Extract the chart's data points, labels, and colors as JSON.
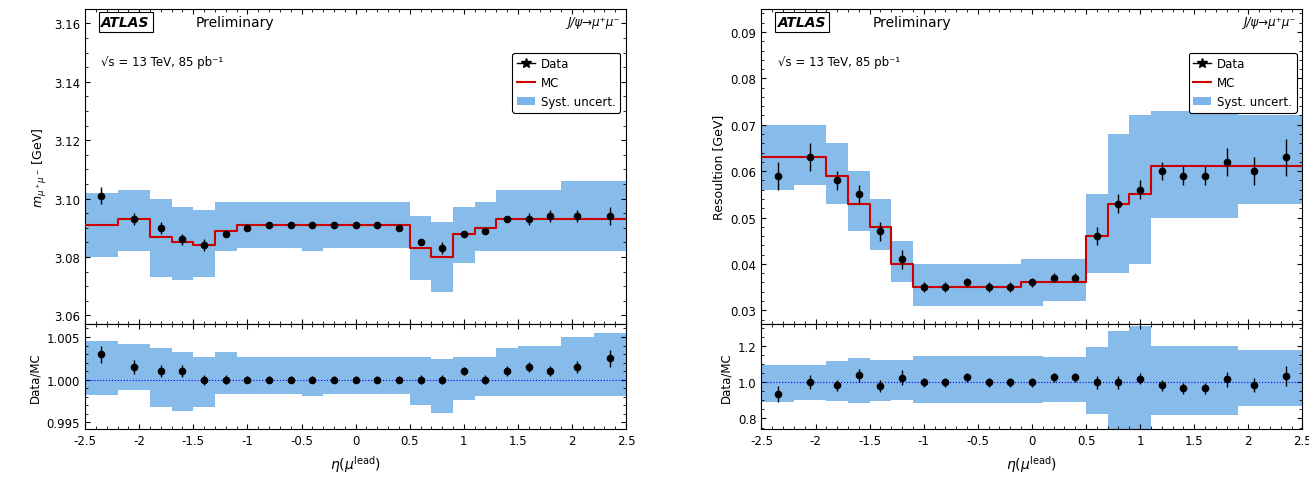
{
  "left": {
    "subtitle": "√s = 13 TeV, 85 pb⁻¹",
    "decay": "J/ψ→μ⁺μ⁻",
    "ylabel_main": "$m_{\\mu^+\\mu^-}$ [GeV]",
    "ylabel_ratio": "Data/MC",
    "xlabel": "$\\eta(\\mu^\\mathrm{lead})$",
    "ylim_main": [
      3.057,
      3.165
    ],
    "ylim_ratio": [
      0.9942,
      1.0065
    ],
    "yticks_main": [
      3.06,
      3.08,
      3.1,
      3.12,
      3.14,
      3.16
    ],
    "yticks_ratio": [
      0.995,
      1.0,
      1.005
    ],
    "eta_edges": [
      -2.5,
      -2.2,
      -1.9,
      -1.7,
      -1.5,
      -1.3,
      -1.1,
      -0.9,
      -0.7,
      -0.5,
      -0.3,
      -0.1,
      0.1,
      0.3,
      0.5,
      0.7,
      0.9,
      1.1,
      1.3,
      1.5,
      1.7,
      1.9,
      2.2,
      2.5
    ],
    "data_x": [
      -2.35,
      -2.05,
      -1.8,
      -1.6,
      -1.4,
      -1.2,
      -1.0,
      -0.8,
      -0.6,
      -0.4,
      -0.2,
      0.0,
      0.2,
      0.4,
      0.6,
      0.8,
      1.0,
      1.2,
      1.4,
      1.6,
      1.8,
      2.05,
      2.35
    ],
    "data_y": [
      3.101,
      3.093,
      3.09,
      3.086,
      3.084,
      3.088,
      3.09,
      3.091,
      3.091,
      3.091,
      3.091,
      3.091,
      3.091,
      3.09,
      3.085,
      3.083,
      3.088,
      3.089,
      3.093,
      3.093,
      3.094,
      3.094,
      3.094
    ],
    "data_yerr": [
      0.003,
      0.002,
      0.002,
      0.002,
      0.002,
      0.001,
      0.001,
      0.001,
      0.001,
      0.001,
      0.001,
      0.001,
      0.001,
      0.001,
      0.001,
      0.002,
      0.001,
      0.001,
      0.001,
      0.002,
      0.002,
      0.002,
      0.003
    ],
    "mc_y": [
      3.091,
      3.093,
      3.087,
      3.085,
      3.084,
      3.089,
      3.091,
      3.091,
      3.091,
      3.091,
      3.091,
      3.091,
      3.091,
      3.091,
      3.083,
      3.08,
      3.088,
      3.09,
      3.093,
      3.093,
      3.093,
      3.093,
      3.093
    ],
    "syst_lo": [
      3.08,
      3.082,
      3.073,
      3.072,
      3.073,
      3.082,
      3.083,
      3.083,
      3.083,
      3.082,
      3.083,
      3.083,
      3.083,
      3.083,
      3.072,
      3.068,
      3.078,
      3.082,
      3.082,
      3.082,
      3.082,
      3.082,
      3.082
    ],
    "syst_hi": [
      3.102,
      3.103,
      3.1,
      3.097,
      3.096,
      3.099,
      3.099,
      3.099,
      3.099,
      3.099,
      3.099,
      3.099,
      3.099,
      3.099,
      3.094,
      3.092,
      3.097,
      3.099,
      3.103,
      3.103,
      3.103,
      3.106,
      3.106
    ],
    "ratio_y": [
      1.003,
      1.0015,
      1.001,
      1.001,
      1.0,
      1.0,
      1.0,
      1.0,
      1.0,
      1.0,
      1.0,
      1.0,
      1.0,
      1.0,
      1.0,
      1.0,
      1.001,
      1.0,
      1.001,
      1.0015,
      1.001,
      1.0015,
      1.0025
    ],
    "ratio_yerr": [
      0.001,
      0.0008,
      0.0007,
      0.0007,
      0.0006,
      0.0005,
      0.0004,
      0.0004,
      0.0004,
      0.0004,
      0.0004,
      0.0004,
      0.0004,
      0.0004,
      0.0005,
      0.0005,
      0.0005,
      0.0005,
      0.0006,
      0.0006,
      0.0006,
      0.0007,
      0.001
    ],
    "ratio_syst_lo": [
      0.9982,
      0.9988,
      0.9968,
      0.9963,
      0.9968,
      0.9983,
      0.9983,
      0.9983,
      0.9983,
      0.9981,
      0.9983,
      0.9983,
      0.9983,
      0.9983,
      0.997,
      0.9961,
      0.9976,
      0.9981,
      0.9981,
      0.9981,
      0.9981,
      0.9981,
      0.9981
    ],
    "ratio_syst_hi": [
      1.0045,
      1.0042,
      1.0037,
      1.0032,
      1.0027,
      1.0032,
      1.0027,
      1.0027,
      1.0027,
      1.0027,
      1.0027,
      1.0027,
      1.0027,
      1.0027,
      1.0027,
      1.0024,
      1.0027,
      1.0027,
      1.0037,
      1.004,
      1.004,
      1.005,
      1.0055
    ]
  },
  "right": {
    "subtitle": "√s = 13 TeV, 85 pb⁻¹",
    "decay": "J/ψ→μ⁺μ⁻",
    "ylabel_main": "Resoultion [GeV]",
    "ylabel_ratio": "Data/MC",
    "xlabel": "$\\eta(\\mu^\\mathrm{lead})$",
    "ylim_main": [
      0.027,
      0.095
    ],
    "ylim_ratio": [
      0.74,
      1.32
    ],
    "yticks_main": [
      0.03,
      0.04,
      0.05,
      0.06,
      0.07,
      0.08,
      0.09
    ],
    "yticks_ratio": [
      0.8,
      1.0,
      1.2
    ],
    "eta_edges": [
      -2.5,
      -2.2,
      -1.9,
      -1.7,
      -1.5,
      -1.3,
      -1.1,
      -0.9,
      -0.7,
      -0.5,
      -0.3,
      -0.1,
      0.1,
      0.3,
      0.5,
      0.7,
      0.9,
      1.1,
      1.3,
      1.5,
      1.7,
      1.9,
      2.2,
      2.5
    ],
    "data_x": [
      -2.35,
      -2.05,
      -1.8,
      -1.6,
      -1.4,
      -1.2,
      -1.0,
      -0.8,
      -0.6,
      -0.4,
      -0.2,
      0.0,
      0.2,
      0.4,
      0.6,
      0.8,
      1.0,
      1.2,
      1.4,
      1.6,
      1.8,
      2.05,
      2.35
    ],
    "data_y": [
      0.059,
      0.063,
      0.058,
      0.055,
      0.047,
      0.041,
      0.035,
      0.035,
      0.036,
      0.035,
      0.035,
      0.036,
      0.037,
      0.037,
      0.046,
      0.053,
      0.056,
      0.06,
      0.059,
      0.059,
      0.062,
      0.06,
      0.063
    ],
    "data_yerr": [
      0.003,
      0.003,
      0.002,
      0.002,
      0.002,
      0.002,
      0.001,
      0.001,
      0.001,
      0.001,
      0.001,
      0.001,
      0.001,
      0.001,
      0.002,
      0.002,
      0.002,
      0.002,
      0.002,
      0.002,
      0.003,
      0.003,
      0.004
    ],
    "mc_y": [
      0.063,
      0.063,
      0.059,
      0.053,
      0.048,
      0.04,
      0.035,
      0.035,
      0.035,
      0.035,
      0.035,
      0.036,
      0.036,
      0.036,
      0.046,
      0.053,
      0.055,
      0.061,
      0.061,
      0.061,
      0.061,
      0.061,
      0.061
    ],
    "syst_lo": [
      0.056,
      0.057,
      0.053,
      0.047,
      0.043,
      0.036,
      0.031,
      0.031,
      0.031,
      0.031,
      0.031,
      0.031,
      0.032,
      0.032,
      0.038,
      0.038,
      0.04,
      0.05,
      0.05,
      0.05,
      0.05,
      0.053,
      0.053
    ],
    "syst_hi": [
      0.07,
      0.07,
      0.066,
      0.06,
      0.054,
      0.045,
      0.04,
      0.04,
      0.04,
      0.04,
      0.04,
      0.041,
      0.041,
      0.041,
      0.055,
      0.068,
      0.072,
      0.073,
      0.073,
      0.073,
      0.073,
      0.072,
      0.072
    ],
    "ratio_y": [
      0.936,
      1.0,
      0.983,
      1.038,
      0.979,
      1.025,
      1.0,
      1.0,
      1.028,
      1.0,
      1.0,
      1.0,
      1.028,
      1.028,
      1.0,
      1.0,
      1.018,
      0.984,
      0.967,
      0.967,
      1.016,
      0.984,
      1.033
    ],
    "ratio_yerr": [
      0.045,
      0.04,
      0.03,
      0.035,
      0.035,
      0.04,
      0.025,
      0.025,
      0.025,
      0.025,
      0.025,
      0.025,
      0.025,
      0.025,
      0.035,
      0.035,
      0.03,
      0.03,
      0.03,
      0.03,
      0.04,
      0.04,
      0.055
    ],
    "ratio_syst_lo": [
      0.888,
      0.903,
      0.898,
      0.887,
      0.896,
      0.9,
      0.886,
      0.886,
      0.886,
      0.886,
      0.886,
      0.886,
      0.889,
      0.889,
      0.826,
      0.717,
      0.727,
      0.82,
      0.82,
      0.82,
      0.82,
      0.869,
      0.869
    ],
    "ratio_syst_hi": [
      1.095,
      1.097,
      1.118,
      1.132,
      1.125,
      1.125,
      1.143,
      1.143,
      1.143,
      1.143,
      1.143,
      1.142,
      1.139,
      1.139,
      1.196,
      1.283,
      1.309,
      1.197,
      1.197,
      1.197,
      1.197,
      1.18,
      1.18
    ]
  },
  "syst_color": "#7ab4e8",
  "mc_color": "#cc0000",
  "data_color": "#000000"
}
